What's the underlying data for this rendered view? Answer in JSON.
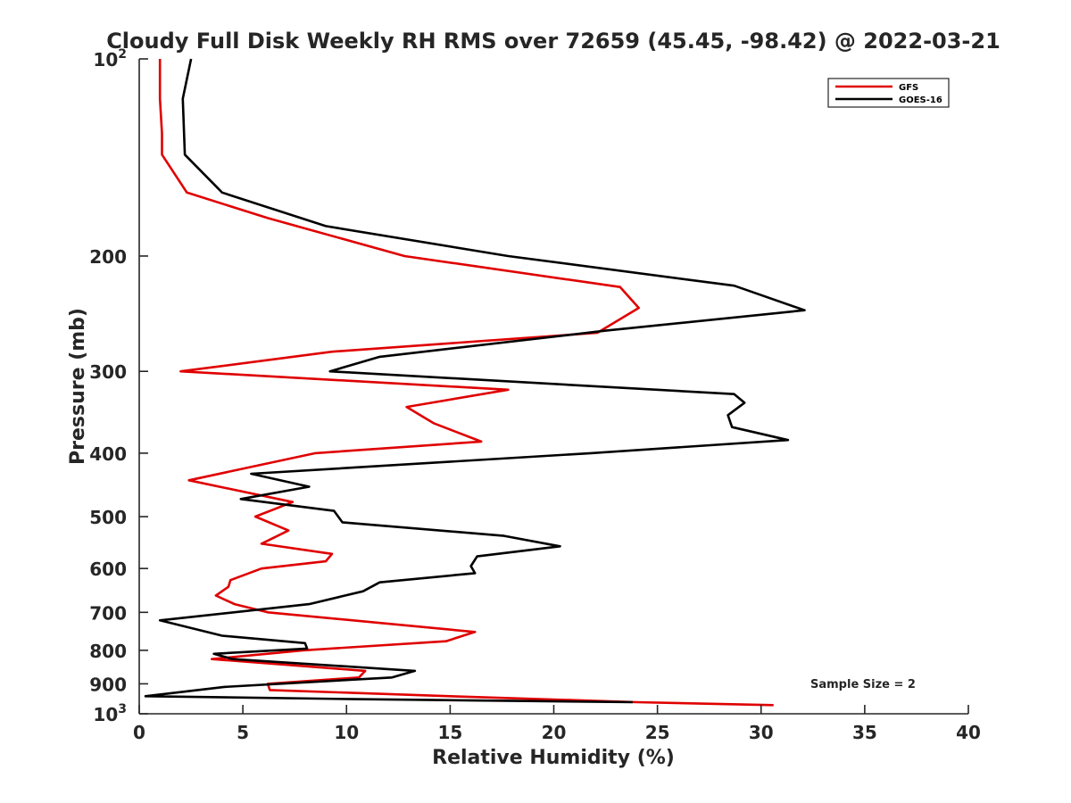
{
  "chart_data": {
    "type": "line",
    "title": "Cloudy Full Disk Weekly RH RMS over 72659 (45.45, -98.42) @ 2022-03-21",
    "xlabel": "Relative Humidity (%)",
    "ylabel": "Pressure (mb)",
    "xlim": [
      0,
      40
    ],
    "ylim": [
      100,
      1000
    ],
    "y_scale": "log",
    "y_reversed": true,
    "grid": false,
    "legend_position": "top-right",
    "x_ticks": [
      0,
      5,
      10,
      15,
      20,
      25,
      30,
      35,
      40
    ],
    "y_ticks": [
      {
        "value": 100,
        "label": "10",
        "sup": "2"
      },
      {
        "value": 200,
        "label": "200",
        "sup": ""
      },
      {
        "value": 300,
        "label": "300",
        "sup": ""
      },
      {
        "value": 400,
        "label": "400",
        "sup": ""
      },
      {
        "value": 500,
        "label": "500",
        "sup": ""
      },
      {
        "value": 600,
        "label": "600",
        "sup": ""
      },
      {
        "value": 700,
        "label": "700",
        "sup": ""
      },
      {
        "value": 800,
        "label": "800",
        "sup": ""
      },
      {
        "value": 900,
        "label": "900",
        "sup": ""
      },
      {
        "value": 1000,
        "label": "10",
        "sup": "3"
      }
    ],
    "annotation": "Sample Size = 2",
    "series": [
      {
        "name": "GFS",
        "color": "#e00000",
        "points": [
          [
            1.0,
            100
          ],
          [
            1.0,
            115
          ],
          [
            1.1,
            130
          ],
          [
            1.1,
            140
          ],
          [
            2.3,
            160
          ],
          [
            6.2,
            175
          ],
          [
            12.8,
            200
          ],
          [
            23.2,
            223
          ],
          [
            24.1,
            240
          ],
          [
            22.1,
            262
          ],
          [
            9.3,
            280
          ],
          [
            2.0,
            300
          ],
          [
            17.8,
            320
          ],
          [
            12.9,
            340
          ],
          [
            14.2,
            360
          ],
          [
            16.5,
            384
          ],
          [
            8.5,
            400
          ],
          [
            2.4,
            440
          ],
          [
            7.4,
            475
          ],
          [
            5.6,
            500
          ],
          [
            7.2,
            525
          ],
          [
            5.9,
            550
          ],
          [
            9.3,
            570
          ],
          [
            9.0,
            585
          ],
          [
            5.9,
            600
          ],
          [
            4.4,
            625
          ],
          [
            4.3,
            640
          ],
          [
            3.7,
            660
          ],
          [
            4.6,
            680
          ],
          [
            6.2,
            700
          ],
          [
            16.2,
            750
          ],
          [
            14.8,
            775
          ],
          [
            7.9,
            800
          ],
          [
            3.5,
            825
          ],
          [
            10.9,
            860
          ],
          [
            10.6,
            880
          ],
          [
            6.2,
            900
          ],
          [
            6.3,
            920
          ],
          [
            15.0,
            940
          ],
          [
            24.0,
            960
          ],
          [
            30.6,
            970
          ]
        ]
      },
      {
        "name": "GOES-16",
        "color": "#000000",
        "points": [
          [
            2.5,
            100
          ],
          [
            2.1,
            115
          ],
          [
            2.2,
            140
          ],
          [
            4.0,
            160
          ],
          [
            9.0,
            180
          ],
          [
            17.8,
            200
          ],
          [
            28.7,
            222
          ],
          [
            32.1,
            242
          ],
          [
            22.5,
            260
          ],
          [
            11.6,
            285
          ],
          [
            9.2,
            300
          ],
          [
            28.7,
            325
          ],
          [
            29.2,
            335
          ],
          [
            28.4,
            350
          ],
          [
            28.6,
            365
          ],
          [
            31.3,
            382
          ],
          [
            21.8,
            400
          ],
          [
            5.4,
            430
          ],
          [
            8.2,
            450
          ],
          [
            4.9,
            470
          ],
          [
            9.4,
            490
          ],
          [
            9.8,
            510
          ],
          [
            17.6,
            535
          ],
          [
            20.3,
            555
          ],
          [
            16.3,
            575
          ],
          [
            16.0,
            595
          ],
          [
            16.2,
            610
          ],
          [
            11.6,
            630
          ],
          [
            10.8,
            650
          ],
          [
            8.2,
            680
          ],
          [
            1.0,
            720
          ],
          [
            4.0,
            760
          ],
          [
            8.0,
            780
          ],
          [
            8.1,
            795
          ],
          [
            3.6,
            810
          ],
          [
            4.5,
            825
          ],
          [
            13.3,
            860
          ],
          [
            12.2,
            880
          ],
          [
            4.1,
            910
          ],
          [
            0.3,
            940
          ],
          [
            10.4,
            950
          ],
          [
            23.8,
            960
          ]
        ]
      }
    ]
  }
}
